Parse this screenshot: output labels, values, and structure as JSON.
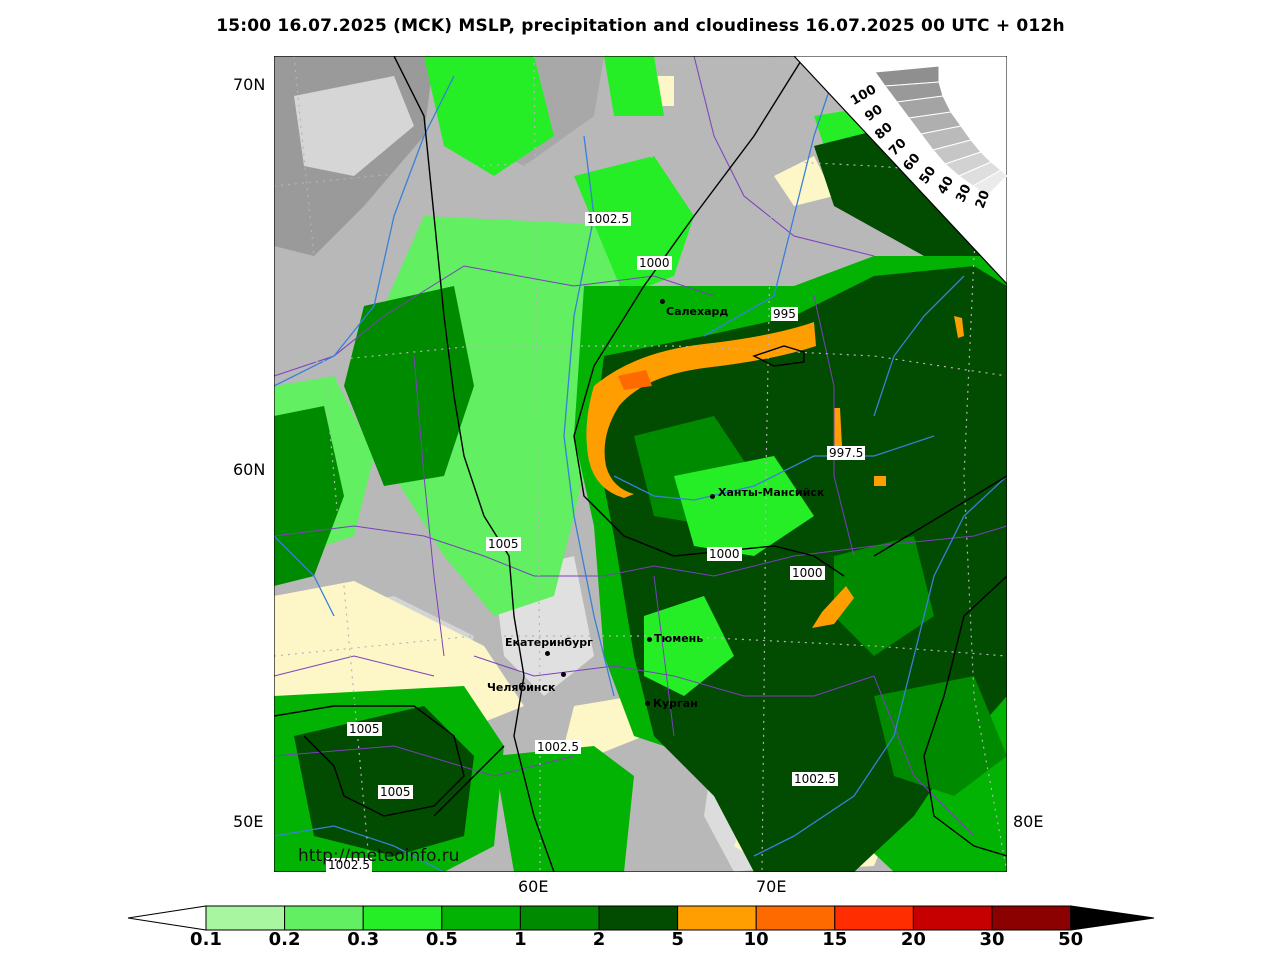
{
  "title": "15:00 16.07.2025 (MCK) MSLP, precipitation and cloudiness 16.07.2025 00 UTC + 012h",
  "watermark": "http://meteoinfo.ru",
  "axes": {
    "lat": [
      "70N",
      "60N",
      "50E"
    ],
    "lon": [
      "60E",
      "70E",
      "80E"
    ]
  },
  "cities": [
    {
      "name": "Салехард"
    },
    {
      "name": "Ханты-Мансийск"
    },
    {
      "name": "Тюмень"
    },
    {
      "name": "Екатеринбург"
    },
    {
      "name": "Челябинск"
    },
    {
      "name": "Курган"
    }
  ],
  "isobars": [
    "1002.5",
    "1000",
    "995",
    "997.5",
    "1005",
    "1000",
    "1000",
    "1005",
    "1005",
    "1002.5",
    "1002.5",
    "1002.5"
  ],
  "cloud_scale": [
    "100",
    "90",
    "80",
    "70",
    "60",
    "50",
    "40",
    "30",
    "20"
  ],
  "colorbar": {
    "labels": [
      "0.1",
      "0.2",
      "0.3",
      "0.5",
      "1",
      "2",
      "5",
      "10",
      "15",
      "20",
      "30",
      "50"
    ],
    "colors": [
      "#a8f7a0",
      "#62ef62",
      "#26ee26",
      "#03b303",
      "#008a00",
      "#014c01",
      "#ff9e00",
      "#ff6a00",
      "#ff2d00",
      "#c60000",
      "#8b0000"
    ],
    "below_color": "#ffffff",
    "above_color": "#000000"
  }
}
